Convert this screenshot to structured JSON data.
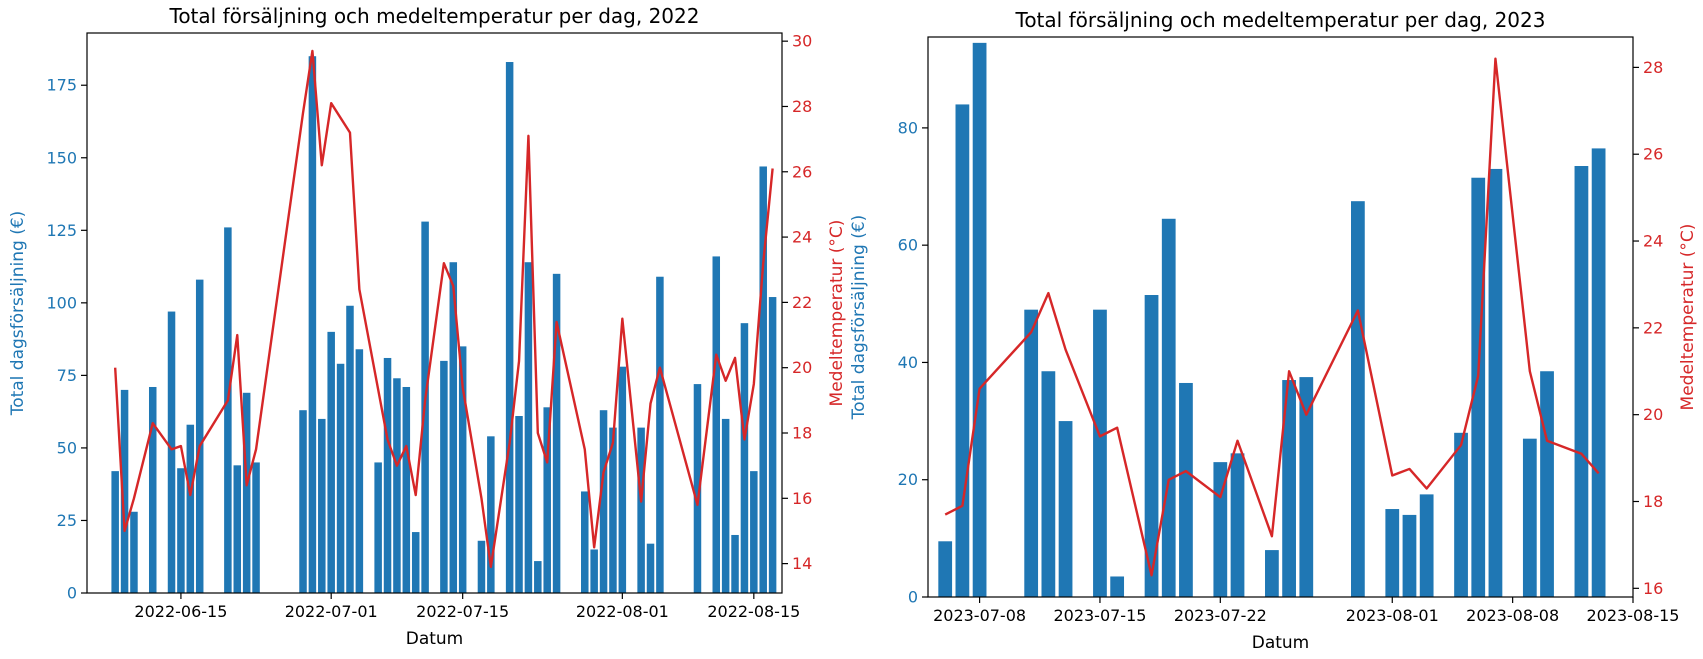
{
  "colors": {
    "sales": "#1f77b4",
    "temp": "#d62728",
    "axis": "#000000"
  },
  "chart_data": [
    {
      "type": "bar",
      "title": "Total försäljning och medeltemperatur per dag, 2022",
      "xlabel": "Datum",
      "ylabel": "Total dagsförsäljning (€)",
      "y2label": "Medeltemperatur (°C)",
      "xlim": [
        "2022-06-05",
        "2022-08-18"
      ],
      "ylim": [
        0,
        193
      ],
      "y2lim": [
        13.1,
        30.25
      ],
      "xticks": [
        "2022-06-15",
        "2022-07-01",
        "2022-07-15",
        "2022-08-01",
        "2022-08-15"
      ],
      "yticks": [
        0,
        25,
        50,
        75,
        100,
        125,
        150,
        175
      ],
      "y2ticks": [
        14,
        16,
        18,
        20,
        22,
        24,
        26,
        28,
        30
      ],
      "series": [
        {
          "name": "Total dagsförsäljning (€)",
          "kind": "bar",
          "data": [
            [
              "2022-06-08",
              42
            ],
            [
              "2022-06-09",
              70
            ],
            [
              "2022-06-10",
              28
            ],
            [
              "2022-06-12",
              71
            ],
            [
              "2022-06-14",
              97
            ],
            [
              "2022-06-15",
              43
            ],
            [
              "2022-06-16",
              58
            ],
            [
              "2022-06-17",
              108
            ],
            [
              "2022-06-20",
              126
            ],
            [
              "2022-06-21",
              44
            ],
            [
              "2022-06-22",
              69
            ],
            [
              "2022-06-23",
              45
            ],
            [
              "2022-06-28",
              63
            ],
            [
              "2022-06-29",
              185
            ],
            [
              "2022-06-30",
              60
            ],
            [
              "2022-07-01",
              90
            ],
            [
              "2022-07-02",
              79
            ],
            [
              "2022-07-03",
              99
            ],
            [
              "2022-07-04",
              84
            ],
            [
              "2022-07-06",
              45
            ],
            [
              "2022-07-07",
              81
            ],
            [
              "2022-07-08",
              74
            ],
            [
              "2022-07-09",
              71
            ],
            [
              "2022-07-10",
              21
            ],
            [
              "2022-07-11",
              128
            ],
            [
              "2022-07-13",
              80
            ],
            [
              "2022-07-14",
              114
            ],
            [
              "2022-07-15",
              85
            ],
            [
              "2022-07-17",
              18
            ],
            [
              "2022-07-18",
              54
            ],
            [
              "2022-07-20",
              183
            ],
            [
              "2022-07-21",
              61
            ],
            [
              "2022-07-22",
              114
            ],
            [
              "2022-07-23",
              11
            ],
            [
              "2022-07-24",
              64
            ],
            [
              "2022-07-25",
              110
            ],
            [
              "2022-07-28",
              35
            ],
            [
              "2022-07-29",
              15
            ],
            [
              "2022-07-30",
              63
            ],
            [
              "2022-07-31",
              57
            ],
            [
              "2022-08-01",
              78
            ],
            [
              "2022-08-03",
              57
            ],
            [
              "2022-08-04",
              17
            ],
            [
              "2022-08-05",
              109
            ],
            [
              "2022-08-09",
              72
            ],
            [
              "2022-08-11",
              116
            ],
            [
              "2022-08-12",
              60
            ],
            [
              "2022-08-13",
              20
            ],
            [
              "2022-08-14",
              93
            ],
            [
              "2022-08-15",
              42
            ],
            [
              "2022-08-16",
              147
            ],
            [
              "2022-08-17",
              102
            ]
          ]
        },
        {
          "name": "Medeltemperatur (°C)",
          "kind": "line",
          "data": [
            [
              "2022-06-08",
              20.0
            ],
            [
              "2022-06-09",
              15.0
            ],
            [
              "2022-06-10",
              16.0
            ],
            [
              "2022-06-12",
              18.3
            ],
            [
              "2022-06-14",
              17.5
            ],
            [
              "2022-06-15",
              17.6
            ],
            [
              "2022-06-16",
              16.1
            ],
            [
              "2022-06-17",
              17.6
            ],
            [
              "2022-06-20",
              19.0
            ],
            [
              "2022-06-21",
              21.0
            ],
            [
              "2022-06-22",
              16.4
            ],
            [
              "2022-06-23",
              17.5
            ],
            [
              "2022-06-28",
              27.8
            ],
            [
              "2022-06-29",
              29.7
            ],
            [
              "2022-06-30",
              26.2
            ],
            [
              "2022-07-01",
              28.1
            ],
            [
              "2022-07-03",
              27.2
            ],
            [
              "2022-07-04",
              22.4
            ],
            [
              "2022-07-07",
              17.8
            ],
            [
              "2022-07-08",
              17.0
            ],
            [
              "2022-07-09",
              17.6
            ],
            [
              "2022-07-10",
              16.1
            ],
            [
              "2022-07-11",
              19.0
            ],
            [
              "2022-07-13",
              23.2
            ],
            [
              "2022-07-14",
              22.5
            ],
            [
              "2022-07-15",
              19.4
            ],
            [
              "2022-07-17",
              16.0
            ],
            [
              "2022-07-18",
              13.9
            ],
            [
              "2022-07-20",
              17.7
            ],
            [
              "2022-07-21",
              20.2
            ],
            [
              "2022-07-22",
              27.1
            ],
            [
              "2022-07-23",
              18.0
            ],
            [
              "2022-07-24",
              17.1
            ],
            [
              "2022-07-25",
              21.4
            ],
            [
              "2022-07-28",
              17.5
            ],
            [
              "2022-07-29",
              14.5
            ],
            [
              "2022-07-30",
              16.8
            ],
            [
              "2022-07-31",
              17.7
            ],
            [
              "2022-08-01",
              21.5
            ],
            [
              "2022-08-03",
              15.9
            ],
            [
              "2022-08-04",
              18.9
            ],
            [
              "2022-08-05",
              20.0
            ],
            [
              "2022-08-09",
              15.8
            ],
            [
              "2022-08-11",
              20.4
            ],
            [
              "2022-08-12",
              19.6
            ],
            [
              "2022-08-13",
              20.3
            ],
            [
              "2022-08-14",
              17.8
            ],
            [
              "2022-08-15",
              19.5
            ],
            [
              "2022-08-16",
              23.2
            ],
            [
              "2022-08-17",
              26.1
            ]
          ]
        }
      ]
    },
    {
      "type": "bar",
      "title": "Total försäljning och medeltemperatur per dag, 2023",
      "xlabel": "Datum",
      "ylabel": "Total dagsförsäljning (€)",
      "y2label": "Medeltemperatur (°C)",
      "xlim": [
        "2023-07-05",
        "2023-08-15"
      ],
      "ylim": [
        0,
        95.5
      ],
      "y2lim": [
        15.8,
        28.7
      ],
      "xticks": [
        "2023-07-08",
        "2023-07-15",
        "2023-07-22",
        "2023-08-01",
        "2023-08-08",
        "2023-08-15"
      ],
      "yticks": [
        0,
        20,
        40,
        60,
        80
      ],
      "y2ticks": [
        16,
        18,
        20,
        22,
        24,
        26,
        28
      ],
      "series": [
        {
          "name": "Total dagsförsäljning (€)",
          "kind": "bar",
          "data": [
            [
              "2023-07-06",
              9.5
            ],
            [
              "2023-07-07",
              84
            ],
            [
              "2023-07-08",
              94.5
            ],
            [
              "2023-07-11",
              49
            ],
            [
              "2023-07-12",
              38.5
            ],
            [
              "2023-07-13",
              30
            ],
            [
              "2023-07-15",
              49
            ],
            [
              "2023-07-16",
              3.5
            ],
            [
              "2023-07-18",
              51.5
            ],
            [
              "2023-07-19",
              64.5
            ],
            [
              "2023-07-20",
              36.5
            ],
            [
              "2023-07-22",
              23
            ],
            [
              "2023-07-23",
              24.5
            ],
            [
              "2023-07-25",
              8
            ],
            [
              "2023-07-26",
              37
            ],
            [
              "2023-07-27",
              37.5
            ],
            [
              "2023-07-30",
              67.5
            ],
            [
              "2023-08-01",
              15
            ],
            [
              "2023-08-02",
              14
            ],
            [
              "2023-08-03",
              17.5
            ],
            [
              "2023-08-05",
              28
            ],
            [
              "2023-08-06",
              71.5
            ],
            [
              "2023-08-07",
              73
            ],
            [
              "2023-08-09",
              27
            ],
            [
              "2023-08-10",
              38.5
            ],
            [
              "2023-08-12",
              73.5
            ],
            [
              "2023-08-13",
              76.5
            ]
          ]
        },
        {
          "name": "Medeltemperatur (°C)",
          "kind": "line",
          "data": [
            [
              "2023-07-06",
              17.7
            ],
            [
              "2023-07-07",
              17.9
            ],
            [
              "2023-07-08",
              20.6
            ],
            [
              "2023-07-11",
              21.9
            ],
            [
              "2023-07-12",
              22.8
            ],
            [
              "2023-07-13",
              21.5
            ],
            [
              "2023-07-15",
              19.5
            ],
            [
              "2023-07-16",
              19.7
            ],
            [
              "2023-07-18",
              16.3
            ],
            [
              "2023-07-19",
              18.5
            ],
            [
              "2023-07-20",
              18.7
            ],
            [
              "2023-07-22",
              18.1
            ],
            [
              "2023-07-23",
              19.4
            ],
            [
              "2023-07-25",
              17.2
            ],
            [
              "2023-07-26",
              21.0
            ],
            [
              "2023-07-27",
              20.0
            ],
            [
              "2023-07-30",
              22.4
            ],
            [
              "2023-08-01",
              18.6
            ],
            [
              "2023-08-02",
              18.75
            ],
            [
              "2023-08-03",
              18.3
            ],
            [
              "2023-08-05",
              19.3
            ],
            [
              "2023-08-06",
              20.9
            ],
            [
              "2023-08-07",
              28.2
            ],
            [
              "2023-08-09",
              21.0
            ],
            [
              "2023-08-10",
              19.4
            ],
            [
              "2023-08-12",
              19.1
            ],
            [
              "2023-08-13",
              18.65
            ]
          ]
        }
      ]
    }
  ]
}
